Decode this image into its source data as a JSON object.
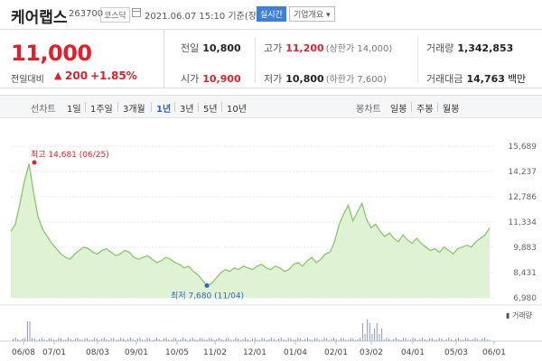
{
  "header": {
    "name": "케어랩스",
    "code": "263700",
    "market": "코스닥",
    "date": "2021.06.07 15:10  기준(장중)",
    "realtime": "실시간",
    "company_info": "기업개요 ▾"
  },
  "price": {
    "current": "11,000",
    "change_label": "전일대비",
    "arrow": "▲",
    "change": "200",
    "rate": "+1.85%"
  },
  "stats": {
    "prev_label": "전일",
    "prev": "10,800",
    "high_label": "고가",
    "high": "11,200",
    "upper_limit": "(상한가 14,000)",
    "volume_label": "거래량",
    "volume": "1,342,853",
    "open_label": "시가",
    "open": "10,900",
    "low_label": "저가",
    "low": "10,800",
    "lower_limit": "(하한가 7,600)",
    "amount_label": "거래대금",
    "amount": "14,763",
    "amount_unit": "백만"
  },
  "periods": {
    "line_label": "선차트",
    "items": [
      "1일",
      "1주일",
      "3개월",
      "1년",
      "3년",
      "5년",
      "10년"
    ],
    "active": "1년",
    "candle_label": "봉차트",
    "candle_items": [
      "일봉",
      "주봉",
      "월봉"
    ]
  },
  "chart_data": {
    "type": "area",
    "y_ticks": [
      "15,689",
      "14,237",
      "12,786",
      "11,334",
      "9,883",
      "8,431",
      "6,980"
    ],
    "ylim": [
      6980,
      15689
    ],
    "x_ticks": [
      "06/08",
      "07/01",
      "08/03",
      "09/01",
      "10/05",
      "11/02",
      "12/01",
      "01/04",
      "02/01",
      "03/02",
      "04/01",
      "05/03",
      "06/01"
    ],
    "max_label": "최고 14,681 (06/25)",
    "min_label": "최저 7,680 (11/04)",
    "volume_label": "거래량",
    "max_value": 14681,
    "min_value": 7680,
    "values": [
      10800,
      11200,
      12400,
      13700,
      14681,
      13000,
      11600,
      10900,
      10500,
      10100,
      9800,
      9500,
      9300,
      9200,
      9500,
      9700,
      9900,
      9800,
      9600,
      9500,
      9700,
      9800,
      9600,
      9400,
      9500,
      9700,
      9600,
      9300,
      9200,
      9300,
      9400,
      9200,
      9000,
      9100,
      9300,
      9200,
      9000,
      8900,
      8700,
      8800,
      8500,
      8300,
      8000,
      7680,
      7800,
      8100,
      8400,
      8600,
      8500,
      8700,
      8600,
      8800,
      8700,
      8600,
      8800,
      8900,
      8700,
      8600,
      8800,
      8700,
      8500,
      8600,
      8900,
      9000,
      8800,
      9100,
      9300,
      9000,
      9200,
      9500,
      9600,
      10200,
      11200,
      11800,
      12300,
      11400,
      11900,
      12400,
      11500,
      11000,
      11200,
      10800,
      10500,
      10700,
      10400,
      10200,
      10600,
      10300,
      10100,
      10400,
      10100,
      9900,
      9700,
      9800,
      9600,
      9900,
      9700,
      9500,
      9800,
      9900,
      10000,
      9900,
      10200,
      10400,
      10600,
      11000
    ]
  }
}
